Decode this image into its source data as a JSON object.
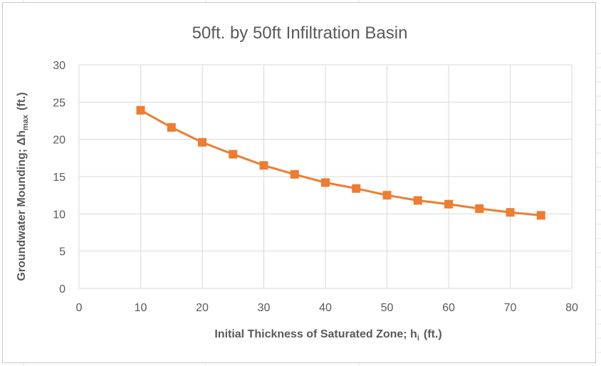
{
  "chart_data": {
    "type": "line",
    "title": "50ft. by 50ft Infiltration Basin",
    "xlabel": {
      "main": "Initial Thickness of Saturated Zone;  h",
      "sub": "i",
      "unit": "(ft.)"
    },
    "ylabel": {
      "main": "Groundwater Mounding;  Δh",
      "sub": "max",
      "unit": "(ft.)"
    },
    "xlim": [
      0,
      80
    ],
    "ylim": [
      0,
      30
    ],
    "xticks": [
      "0",
      "10",
      "20",
      "30",
      "40",
      "50",
      "60",
      "70",
      "80"
    ],
    "yticks": [
      "0",
      "5",
      "10",
      "15",
      "20",
      "25",
      "30"
    ],
    "grid": true,
    "legend": "none",
    "series": [
      {
        "color": "#ED7D31",
        "marker": "square",
        "x": [
          10,
          15,
          20,
          25,
          30,
          35,
          40,
          45,
          50,
          55,
          60,
          65,
          70,
          75
        ],
        "y": [
          23.9,
          21.6,
          19.6,
          18.0,
          16.5,
          15.3,
          14.2,
          13.4,
          12.5,
          11.8,
          11.3,
          10.7,
          10.2,
          9.8
        ]
      }
    ]
  }
}
